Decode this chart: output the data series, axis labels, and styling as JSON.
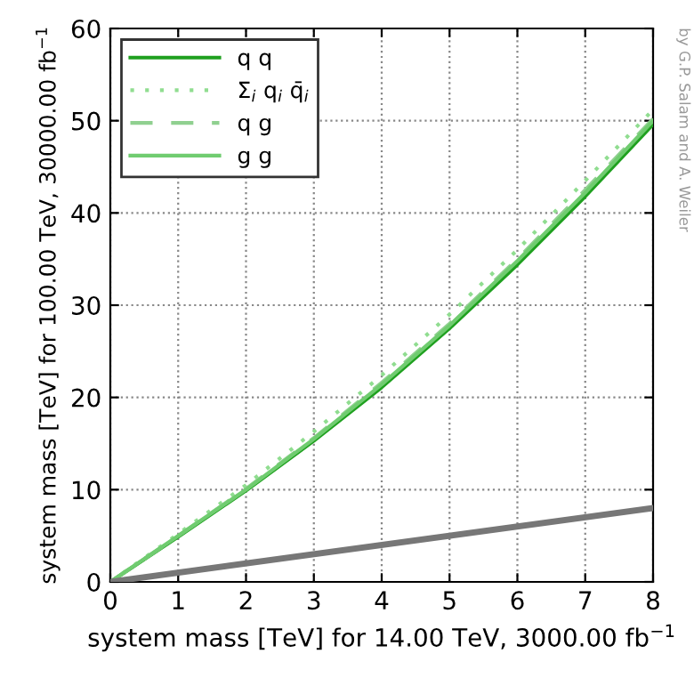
{
  "chart_data": {
    "type": "line",
    "xlabel": "system mass [TeV] for 14.00 TeV, 3000.00 fb$^{−1}$",
    "ylabel": "system mass [TeV] for 100.00 TeV, 30000.00 fb$^{−1}$",
    "x": [
      0,
      1,
      2,
      3,
      4,
      5,
      6,
      7,
      8
    ],
    "series": [
      {
        "name": "q q",
        "color": "#1fa01f",
        "line_style": "solid",
        "values": [
          0,
          4.9,
          9.9,
          15.3,
          21.1,
          27.5,
          34.4,
          41.8,
          49.6
        ]
      },
      {
        "name": "Σ$_{i}$ q$_{i}$ q̄$_{i}$",
        "color": "#90dd90",
        "line_style": "dotted",
        "values": [
          0,
          5.2,
          10.5,
          16.3,
          22.4,
          29.0,
          36.0,
          43.5,
          51.2
        ]
      },
      {
        "name": "q g",
        "color": "#90d090",
        "line_style": "dashed",
        "values": [
          0,
          5.0,
          10.1,
          15.6,
          21.6,
          28.0,
          35.0,
          42.5,
          50.2
        ]
      },
      {
        "name": "g g",
        "color": "#70cc70",
        "line_style": "solid",
        "values": [
          0,
          5.0,
          10.0,
          15.5,
          21.4,
          27.8,
          34.8,
          42.2,
          50.0
        ]
      },
      {
        "color": "#777777",
        "line_style": "solid",
        "x": [
          0,
          8
        ],
        "values": [
          0,
          8
        ]
      }
    ],
    "xlim": [
      0,
      8
    ],
    "xticks": [
      0,
      1,
      2,
      3,
      4,
      5,
      6,
      7,
      8
    ],
    "ylim": [
      0,
      60
    ],
    "yticks": [
      0,
      10,
      20,
      30,
      40,
      50,
      60
    ],
    "grid": true,
    "legend": "top left",
    "annotations": [
      "by G.P. Salam and A. Weiler"
    ]
  }
}
